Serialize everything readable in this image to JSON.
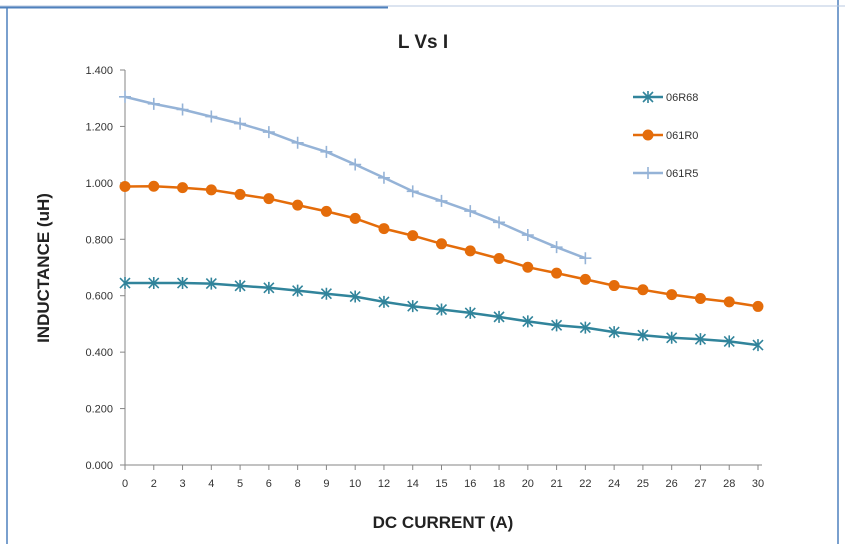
{
  "chart_data": {
    "type": "line",
    "title": "L Vs I",
    "xlabel": "DC CURRENT (A)",
    "ylabel": "INDUCTANCE (uH)",
    "ylim": [
      0,
      1.4
    ],
    "y_ticks": [
      "0.000",
      "0.200",
      "0.400",
      "0.600",
      "0.800",
      "1.000",
      "1.200",
      "1.400"
    ],
    "categories": [
      "0",
      "2",
      "3",
      "4",
      "5",
      "6",
      "8",
      "9",
      "10",
      "12",
      "14",
      "15",
      "16",
      "18",
      "20",
      "21",
      "22",
      "24",
      "25",
      "26",
      "27",
      "28",
      "30"
    ],
    "grid": false,
    "legend_position": "top-right",
    "series": [
      {
        "name": "06R68",
        "color": "#31849b",
        "marker": "asterisk",
        "values": [
          0.645,
          0.645,
          0.645,
          0.643,
          0.635,
          0.628,
          0.618,
          0.607,
          0.597,
          0.578,
          0.563,
          0.551,
          0.539,
          0.525,
          0.509,
          0.495,
          0.487,
          0.471,
          0.46,
          0.451,
          0.446,
          0.438,
          0.425
        ]
      },
      {
        "name": "061R0",
        "color": "#e46c0a",
        "marker": "circle",
        "values": [
          0.987,
          0.988,
          0.983,
          0.975,
          0.959,
          0.944,
          0.921,
          0.899,
          0.874,
          0.838,
          0.813,
          0.784,
          0.759,
          0.732,
          0.701,
          0.68,
          0.658,
          0.636,
          0.621,
          0.604,
          0.59,
          0.578,
          0.562
        ]
      },
      {
        "name": "061R5",
        "color": "#95b3d7",
        "marker": "plus",
        "values": [
          1.305,
          1.28,
          1.26,
          1.235,
          1.21,
          1.18,
          1.142,
          1.11,
          1.065,
          1.018,
          0.97,
          0.936,
          0.9,
          0.86,
          0.815,
          0.772,
          0.733,
          null,
          null,
          null,
          null,
          null,
          null
        ]
      }
    ]
  }
}
